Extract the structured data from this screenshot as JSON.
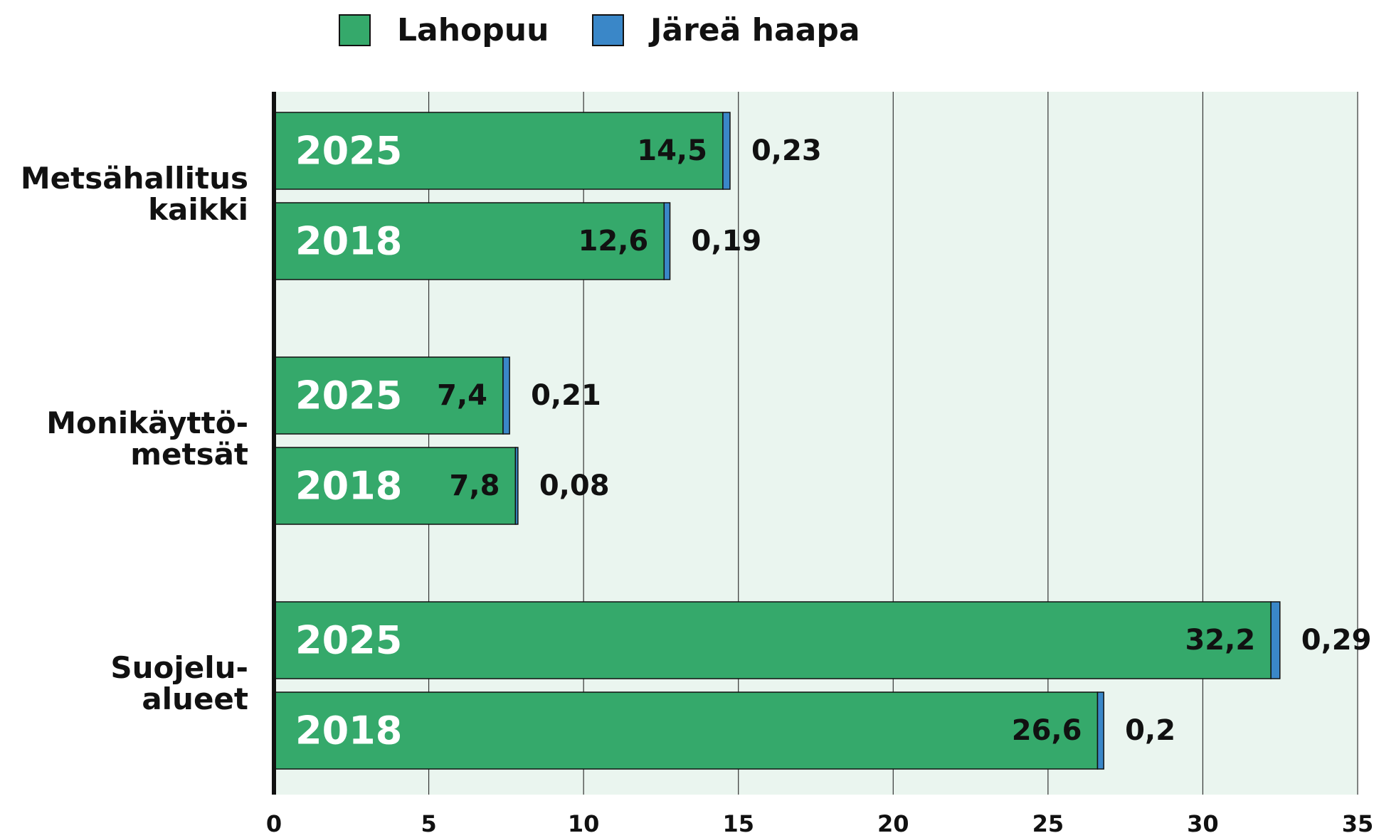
{
  "chart_data": {
    "type": "bar",
    "orientation": "horizontal",
    "stacked": true,
    "categories": [
      [
        "Metsähallitus",
        "kaikki"
      ],
      [
        "Monikäyttö-",
        "metsät"
      ],
      [
        "Suojelu-",
        "alueet"
      ]
    ],
    "years": [
      [
        "2025",
        "2018"
      ],
      [
        "2025",
        "2018"
      ],
      [
        "2025",
        "2018"
      ]
    ],
    "series": [
      {
        "name": "Lahopuu",
        "color": "#35a96b",
        "values": [
          [
            14.5,
            12.6
          ],
          [
            7.4,
            7.8
          ],
          [
            32.2,
            26.6
          ]
        ],
        "value_labels": [
          [
            "14,5",
            "12,6"
          ],
          [
            "7,4",
            "7,8"
          ],
          [
            "32,2",
            "26,6"
          ]
        ]
      },
      {
        "name": "Järeä haapa",
        "color": "#3a87c8",
        "values": [
          [
            0.23,
            0.19
          ],
          [
            0.21,
            0.08
          ],
          [
            0.29,
            0.2
          ]
        ],
        "value_labels": [
          [
            "0,23",
            "0,19"
          ],
          [
            "0,21",
            "0,08"
          ],
          [
            "0,29",
            "0,2"
          ]
        ]
      }
    ],
    "xlim": [
      0,
      35
    ],
    "xticks": [
      0,
      5,
      10,
      15,
      20,
      25,
      30,
      35
    ],
    "grid": true,
    "legend": "top"
  }
}
